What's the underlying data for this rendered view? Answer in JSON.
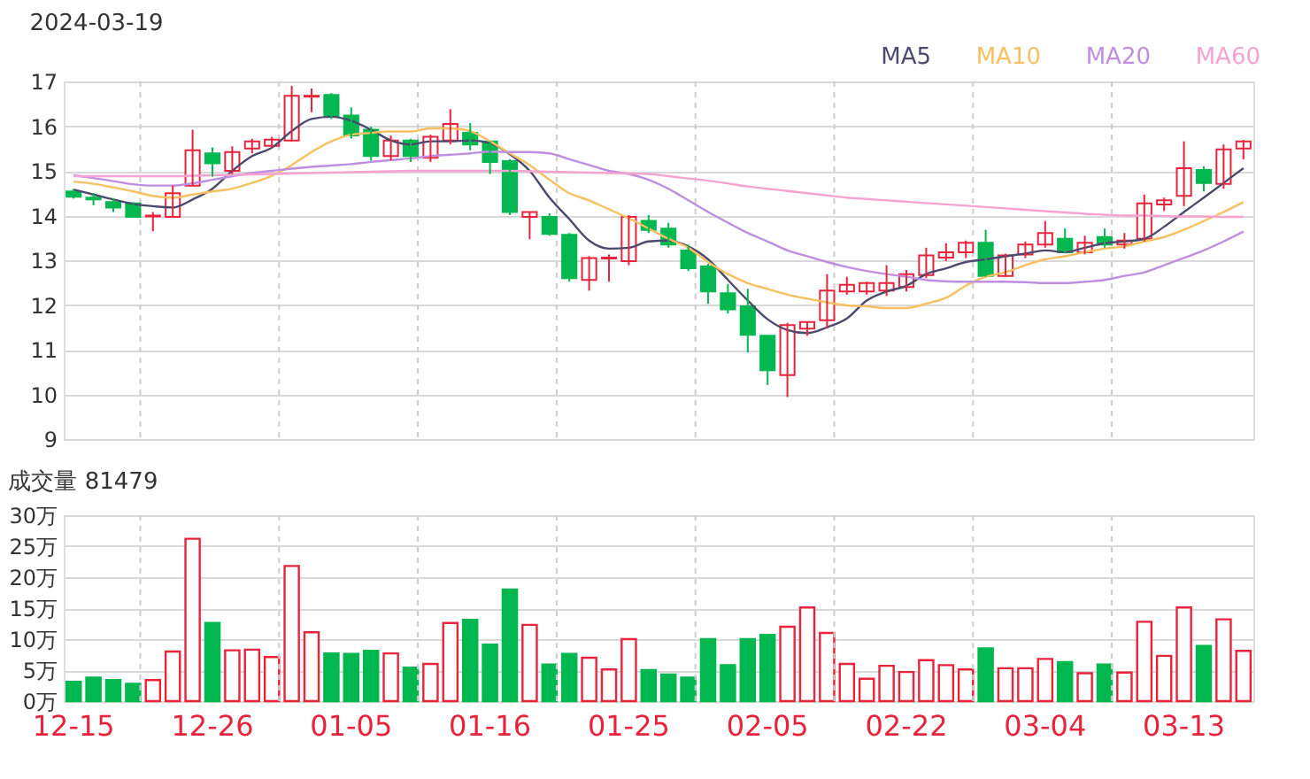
{
  "chart_data": [
    {
      "type": "candlestick",
      "title": "2024-03-19",
      "categories": [
        null,
        null,
        null,
        null,
        null,
        null,
        null,
        null,
        null,
        null,
        null,
        null,
        null,
        null,
        null,
        null,
        null,
        null,
        null,
        null,
        null,
        null,
        null,
        null,
        null,
        null,
        null,
        null,
        null,
        null,
        null,
        null,
        null,
        null,
        null,
        null,
        null,
        null,
        null,
        null,
        null,
        null,
        null,
        null,
        null,
        null,
        null,
        null,
        null,
        null,
        null,
        null,
        null,
        null,
        null,
        null,
        null,
        null,
        null,
        null
      ],
      "ohlc": [
        [
          14.54,
          14.6,
          14.38,
          14.42
        ],
        [
          14.4,
          14.5,
          14.23,
          14.36
        ],
        [
          14.3,
          14.39,
          14.08,
          14.18
        ],
        [
          14.27,
          14.3,
          13.95,
          13.97
        ],
        [
          13.98,
          14.08,
          13.65,
          14.0
        ],
        [
          13.97,
          14.67,
          13.95,
          14.5
        ],
        [
          14.67,
          15.92,
          14.67,
          15.46
        ],
        [
          15.39,
          15.52,
          14.87,
          15.17
        ],
        [
          15.0,
          15.55,
          14.93,
          15.42
        ],
        [
          15.5,
          15.72,
          15.39,
          15.66
        ],
        [
          15.56,
          15.76,
          15.52,
          15.7
        ],
        [
          15.68,
          16.9,
          15.66,
          16.68
        ],
        [
          16.66,
          16.84,
          16.31,
          16.68
        ],
        [
          16.7,
          16.74,
          16.16,
          16.21
        ],
        [
          16.24,
          16.42,
          15.72,
          15.79
        ],
        [
          15.92,
          15.99,
          15.23,
          15.33
        ],
        [
          15.33,
          15.79,
          15.23,
          15.68
        ],
        [
          15.68,
          15.72,
          15.2,
          15.33
        ],
        [
          15.29,
          15.81,
          15.2,
          15.76
        ],
        [
          15.68,
          16.38,
          15.59,
          16.05
        ],
        [
          15.85,
          16.07,
          15.46,
          15.59
        ],
        [
          15.66,
          15.66,
          14.93,
          15.2
        ],
        [
          15.22,
          15.26,
          14.01,
          14.08
        ],
        [
          13.97,
          14.08,
          13.47,
          14.08
        ],
        [
          13.97,
          14.05,
          13.55,
          13.59
        ],
        [
          13.57,
          13.61,
          12.52,
          12.6
        ],
        [
          12.56,
          13.09,
          12.32,
          13.05
        ],
        [
          13.04,
          13.13,
          12.52,
          13.06
        ],
        [
          12.98,
          14.01,
          12.89,
          13.97
        ],
        [
          13.88,
          14.01,
          13.61,
          13.68
        ],
        [
          13.71,
          13.84,
          13.28,
          13.35
        ],
        [
          13.22,
          13.35,
          12.76,
          12.82
        ],
        [
          12.86,
          12.92,
          12.03,
          12.3
        ],
        [
          12.26,
          12.47,
          11.81,
          11.9
        ],
        [
          11.97,
          12.36,
          10.94,
          11.33
        ],
        [
          11.31,
          11.31,
          10.21,
          10.54
        ],
        [
          10.43,
          11.6,
          9.94,
          11.55
        ],
        [
          11.47,
          11.62,
          11.31,
          11.62
        ],
        [
          11.66,
          12.69,
          11.47,
          12.32
        ],
        [
          12.3,
          12.63,
          12.23,
          12.45
        ],
        [
          12.3,
          12.52,
          12.23,
          12.49
        ],
        [
          12.32,
          12.89,
          12.2,
          12.49
        ],
        [
          12.4,
          12.78,
          12.3,
          12.69
        ],
        [
          12.67,
          13.28,
          12.6,
          13.11
        ],
        [
          13.06,
          13.38,
          12.98,
          13.18
        ],
        [
          13.18,
          13.44,
          13.05,
          13.39
        ],
        [
          13.39,
          13.68,
          12.63,
          12.65
        ],
        [
          12.65,
          13.15,
          12.63,
          13.11
        ],
        [
          13.13,
          13.42,
          13.05,
          13.35
        ],
        [
          13.35,
          13.88,
          13.28,
          13.61
        ],
        [
          13.48,
          13.71,
          13.15,
          13.18
        ],
        [
          13.18,
          13.55,
          13.13,
          13.39
        ],
        [
          13.52,
          13.71,
          13.28,
          13.35
        ],
        [
          13.35,
          13.61,
          13.26,
          13.44
        ],
        [
          13.48,
          14.47,
          13.42,
          14.27
        ],
        [
          14.25,
          14.4,
          14.1,
          14.34
        ],
        [
          14.44,
          15.66,
          14.21,
          15.06
        ],
        [
          15.02,
          15.1,
          14.54,
          14.73
        ],
        [
          14.71,
          15.59,
          14.6,
          15.48
        ],
        [
          15.5,
          15.69,
          15.26,
          15.66
        ]
      ],
      "colors": [
        "#00b84f",
        "#00b84f",
        "#00b84f",
        "#00b84f",
        "#e8243c",
        "#e8243c",
        "#e8243c",
        "#00b84f",
        "#e8243c",
        "#e8243c",
        "#e8243c",
        "#e8243c",
        "#e8243c",
        "#00b84f",
        "#00b84f",
        "#00b84f",
        "#e8243c",
        "#00b84f",
        "#e8243c",
        "#e8243c",
        "#00b84f",
        "#00b84f",
        "#00b84f",
        "#e8243c",
        "#00b84f",
        "#00b84f",
        "#e8243c",
        "#e8243c",
        "#e8243c",
        "#00b84f",
        "#00b84f",
        "#00b84f",
        "#00b84f",
        "#00b84f",
        "#00b84f",
        "#00b84f",
        "#e8243c",
        "#e8243c",
        "#e8243c",
        "#e8243c",
        "#e8243c",
        "#e8243c",
        "#e8243c",
        "#e8243c",
        "#e8243c",
        "#e8243c",
        "#00b84f",
        "#e8243c",
        "#e8243c",
        "#e8243c",
        "#00b84f",
        "#e8243c",
        "#00b84f",
        "#e8243c",
        "#e8243c",
        "#e8243c",
        "#e8243c",
        "#00b84f",
        "#e8243c",
        "#e8243c"
      ],
      "series": [
        {
          "name": "MA5",
          "type": "line",
          "color": "#4b4a6e",
          "values": [
            14.58,
            14.47,
            14.36,
            14.26,
            14.21,
            14.18,
            14.36,
            14.6,
            15.0,
            15.33,
            15.52,
            15.89,
            16.16,
            16.21,
            16.12,
            15.92,
            15.68,
            15.59,
            15.66,
            15.66,
            15.68,
            15.62,
            15.37,
            15.0,
            14.4,
            13.92,
            13.44,
            13.26,
            13.28,
            13.42,
            13.44,
            13.31,
            13.02,
            12.56,
            12.1,
            11.68,
            11.44,
            11.37,
            11.5,
            11.7,
            12.1,
            12.3,
            12.43,
            12.69,
            12.82,
            12.96,
            13.02,
            13.09,
            13.15,
            13.22,
            13.18,
            13.28,
            13.38,
            13.42,
            13.48,
            13.75,
            14.08,
            14.4,
            14.73,
            15.06
          ]
        },
        {
          "name": "MA10",
          "type": "line",
          "color": "#f8c060",
          "values": [
            14.76,
            14.71,
            14.63,
            14.54,
            14.44,
            14.4,
            14.47,
            14.54,
            14.6,
            14.73,
            14.89,
            15.13,
            15.42,
            15.66,
            15.81,
            15.85,
            15.88,
            15.88,
            15.95,
            15.95,
            15.89,
            15.66,
            15.39,
            15.13,
            14.8,
            14.5,
            14.34,
            14.14,
            13.94,
            13.71,
            13.48,
            13.28,
            12.96,
            12.69,
            12.49,
            12.36,
            12.23,
            12.14,
            12.06,
            11.99,
            11.97,
            11.93,
            11.93,
            12.03,
            12.16,
            12.43,
            12.63,
            12.73,
            12.89,
            13.02,
            13.09,
            13.18,
            13.26,
            13.31,
            13.42,
            13.52,
            13.68,
            13.88,
            14.08,
            14.3
          ]
        },
        {
          "name": "MA20",
          "type": "line",
          "color": "#c08ee0",
          "values": [
            14.9,
            14.84,
            14.77,
            14.7,
            14.67,
            14.67,
            14.72,
            14.8,
            14.88,
            14.95,
            15.0,
            15.05,
            15.09,
            15.12,
            15.15,
            15.2,
            15.24,
            15.28,
            15.33,
            15.36,
            15.39,
            15.43,
            15.42,
            15.42,
            15.39,
            15.26,
            15.13,
            15.0,
            14.93,
            14.8,
            14.6,
            14.34,
            14.08,
            13.84,
            13.61,
            13.42,
            13.22,
            13.09,
            12.96,
            12.85,
            12.76,
            12.69,
            12.63,
            12.56,
            12.53,
            12.52,
            12.52,
            12.52,
            12.51,
            12.49,
            12.49,
            12.52,
            12.56,
            12.65,
            12.73,
            12.89,
            13.05,
            13.22,
            13.42,
            13.64
          ]
        },
        {
          "name": "MA60",
          "type": "line",
          "color": "#f5a3cf",
          "values": [
            14.88,
            14.88,
            14.88,
            14.88,
            14.88,
            14.88,
            14.89,
            14.9,
            14.91,
            14.92,
            14.93,
            14.94,
            14.95,
            14.96,
            14.97,
            14.98,
            14.99,
            15.0,
            15.0,
            15.0,
            15.0,
            15.0,
            15.0,
            14.99,
            14.98,
            14.97,
            14.96,
            14.95,
            14.94,
            14.93,
            14.88,
            14.83,
            14.78,
            14.72,
            14.65,
            14.6,
            14.55,
            14.5,
            14.45,
            14.4,
            14.37,
            14.34,
            14.31,
            14.28,
            14.25,
            14.22,
            14.19,
            14.16,
            14.13,
            14.1,
            14.07,
            14.04,
            14.02,
            14.0,
            14.0,
            13.99,
            13.98,
            13.98,
            13.97,
            13.97
          ]
        }
      ],
      "ylim": [
        9,
        17
      ],
      "yticks": [
        9,
        10,
        11,
        12,
        13,
        14,
        15,
        16,
        17
      ],
      "grid": true,
      "legend": "top right",
      "tick_labels": "y"
    },
    {
      "type": "bar",
      "title": "成交量 81479",
      "categories": [
        "12-15",
        null,
        null,
        null,
        null,
        null,
        null,
        "12-26",
        null,
        null,
        null,
        null,
        null,
        null,
        "01-05",
        null,
        null,
        null,
        null,
        null,
        null,
        "01-16",
        null,
        null,
        null,
        null,
        null,
        null,
        "01-25",
        null,
        null,
        null,
        null,
        null,
        null,
        "02-05",
        null,
        null,
        null,
        null,
        null,
        null,
        "02-22",
        null,
        null,
        null,
        null,
        null,
        null,
        "03-04",
        null,
        null,
        null,
        null,
        null,
        null,
        "03-13",
        null,
        null,
        null
      ],
      "values": [
        3.1,
        3.8,
        3.4,
        2.8,
        3.4,
        8.0,
        26.2,
        12.6,
        8.2,
        8.3,
        7.1,
        21.8,
        11.1,
        7.7,
        7.6,
        8.1,
        7.7,
        5.4,
        6.0,
        12.6,
        13.1,
        9.1,
        18.0,
        12.3,
        5.9,
        7.6,
        7.0,
        5.1,
        10.0,
        5.0,
        4.3,
        3.8,
        10.0,
        5.8,
        10.0,
        10.7,
        12.0,
        15.1,
        11.0,
        6.0,
        3.6,
        5.7,
        4.7,
        6.6,
        5.8,
        5.1,
        8.5,
        5.3,
        5.3,
        6.8,
        6.3,
        4.5,
        5.9,
        4.6,
        12.8,
        7.3,
        15.1,
        8.9,
        13.2,
        8.1
      ],
      "colors": [
        "#00b84f",
        "#00b84f",
        "#00b84f",
        "#00b84f",
        "#e8243c",
        "#e8243c",
        "#e8243c",
        "#00b84f",
        "#e8243c",
        "#e8243c",
        "#e8243c",
        "#e8243c",
        "#e8243c",
        "#00b84f",
        "#00b84f",
        "#00b84f",
        "#e8243c",
        "#00b84f",
        "#e8243c",
        "#e8243c",
        "#00b84f",
        "#00b84f",
        "#00b84f",
        "#e8243c",
        "#00b84f",
        "#00b84f",
        "#e8243c",
        "#e8243c",
        "#e8243c",
        "#00b84f",
        "#00b84f",
        "#00b84f",
        "#00b84f",
        "#00b84f",
        "#00b84f",
        "#00b84f",
        "#e8243c",
        "#e8243c",
        "#e8243c",
        "#e8243c",
        "#e8243c",
        "#e8243c",
        "#e8243c",
        "#e8243c",
        "#e8243c",
        "#e8243c",
        "#00b84f",
        "#e8243c",
        "#e8243c",
        "#e8243c",
        "#00b84f",
        "#e8243c",
        "#00b84f",
        "#e8243c",
        "#e8243c",
        "#e8243c",
        "#e8243c",
        "#00b84f",
        "#e8243c",
        "#e8243c"
      ],
      "ylim": [
        0,
        30
      ],
      "yticks": [
        {
          "value": 0,
          "label": "0万"
        },
        {
          "value": 5,
          "label": "5万"
        },
        {
          "value": 10,
          "label": "10万"
        },
        {
          "value": 15,
          "label": "15万"
        },
        {
          "value": 20,
          "label": "20万"
        },
        {
          "value": 25,
          "label": "25万"
        },
        {
          "value": 30,
          "label": "30万"
        }
      ],
      "grid": true
    }
  ]
}
